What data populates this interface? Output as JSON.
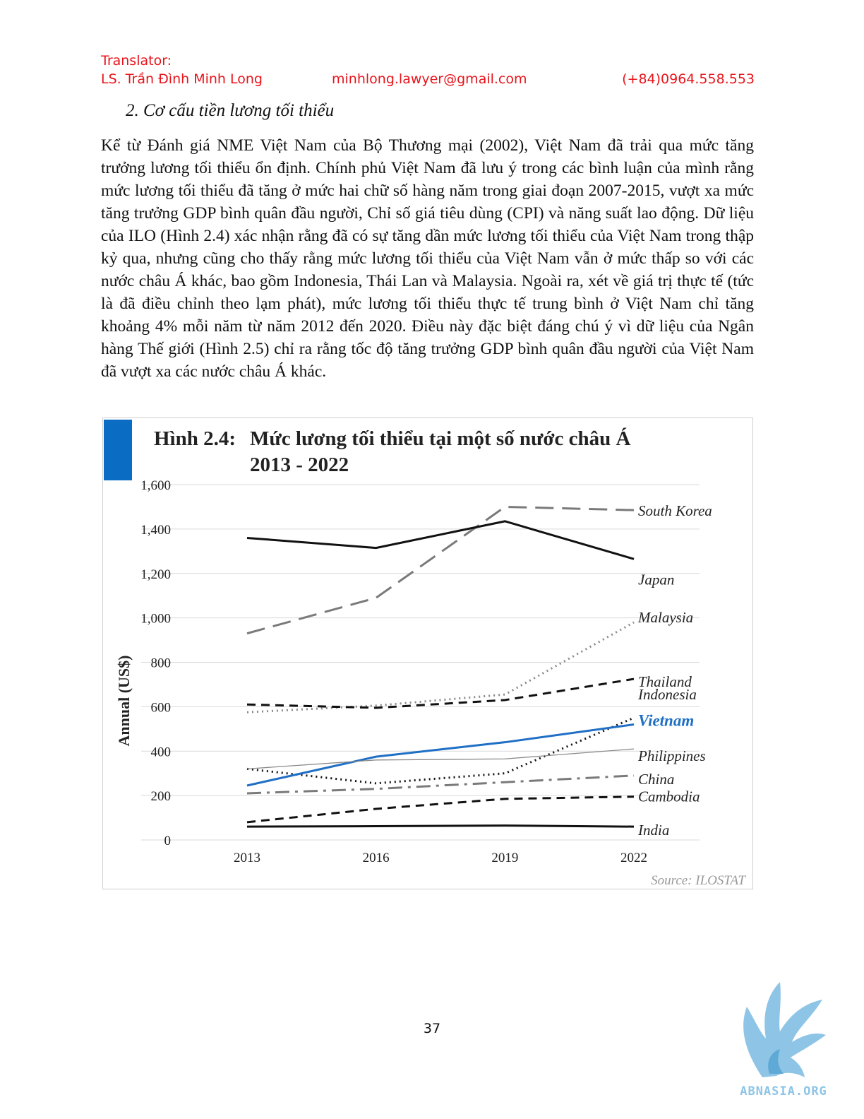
{
  "header": {
    "label": "Translator:",
    "name": "LS. Trần Đình Minh Long",
    "email": "minhlong.lawyer@gmail.com",
    "phone": "(+84)0964.558.553"
  },
  "section_heading": "2.  Cơ cấu tiền lương tối thiểu",
  "body_text": "Kể từ Đánh giá NME Việt Nam của Bộ Thương mại (2002), Việt Nam đã trải qua mức tăng trưởng lương tối thiểu ổn định. Chính phủ Việt Nam đã lưu ý trong các bình luận của mình rằng mức lương tối thiểu đã tăng ở mức hai chữ số hàng năm trong giai đoạn 2007-2015, vượt xa mức tăng trưởng GDP bình quân đầu người, Chỉ số giá tiêu dùng (CPI) và năng suất lao động. Dữ liệu của ILO (Hình 2.4) xác nhận rằng đã có sự tăng dần mức lương tối thiểu của Việt Nam trong thập kỷ qua, nhưng cũng cho thấy rằng mức lương tối thiểu của Việt Nam vẫn ở mức thấp so với các nước châu Á khác, bao gồm Indonesia, Thái Lan và Malaysia. Ngoài ra, xét về giá trị thực tế (tức là đã điều chỉnh theo lạm phát), mức lương tối thiểu thực tế trung bình ở Việt Nam chỉ tăng khoảng 4% mỗi năm từ năm 2012 đến 2020. Điều này đặc biệt đáng chú ý vì dữ liệu của Ngân hàng Thế giới (Hình 2.5) chỉ ra rằng tốc độ tăng trưởng GDP bình quân đầu người của Việt Nam đã vượt xa các nước châu Á khác.",
  "page_number": "37",
  "logo": {
    "text": "ABNASIA.ORG",
    "color": "#8ec5e6"
  },
  "chart_data": {
    "type": "line",
    "title_prefix": "Hình 2.4:",
    "title": "Mức lương tối thiểu tại một số nước châu Á",
    "subtitle": "2013 - 2022",
    "ylabel": "Annual (US$)",
    "xlabel": "",
    "x": [
      "2013",
      "2016",
      "2019",
      "2022"
    ],
    "y_ticks": [
      "0",
      "200",
      "400",
      "600",
      "800",
      "1,000",
      "1,200",
      "1,400",
      "1,600"
    ],
    "ylim": [
      0,
      1600
    ],
    "grid": true,
    "legend": "inline labels at line ends",
    "source": "Source: ILOSTAT",
    "accent_color": "#0a6cc2",
    "series": [
      {
        "name": "South Korea",
        "values": [
          930,
          1090,
          1500,
          1485
        ],
        "style": "longdash",
        "color": "#7a7a7a"
      },
      {
        "name": "Japan",
        "values": [
          1360,
          1315,
          1435,
          1265
        ],
        "style": "solid",
        "color": "#111111"
      },
      {
        "name": "Malaysia",
        "values": [
          575,
          605,
          655,
          980
        ],
        "style": "dotted",
        "color": "#8a8a8a"
      },
      {
        "name": "Thailand",
        "values": [
          610,
          595,
          630,
          725
        ],
        "style": "dash",
        "color": "#111111"
      },
      {
        "name": "Indonesia",
        "values": [
          320,
          255,
          300,
          550
        ],
        "style": "dotted",
        "color": "#111111"
      },
      {
        "name": "Vietnam",
        "values": [
          245,
          375,
          440,
          520
        ],
        "style": "solid",
        "color": "#1f6fc5"
      },
      {
        "name": "Philippines",
        "values": [
          320,
          360,
          365,
          410
        ],
        "style": "thin",
        "color": "#8a8a8a"
      },
      {
        "name": "China",
        "values": [
          210,
          230,
          260,
          290
        ],
        "style": "dashdot",
        "color": "#7a7a7a"
      },
      {
        "name": "Cambodia",
        "values": [
          80,
          140,
          185,
          195
        ],
        "style": "dash",
        "color": "#111111"
      },
      {
        "name": "India",
        "values": [
          60,
          62,
          65,
          60
        ],
        "style": "solid",
        "color": "#111111"
      }
    ]
  }
}
